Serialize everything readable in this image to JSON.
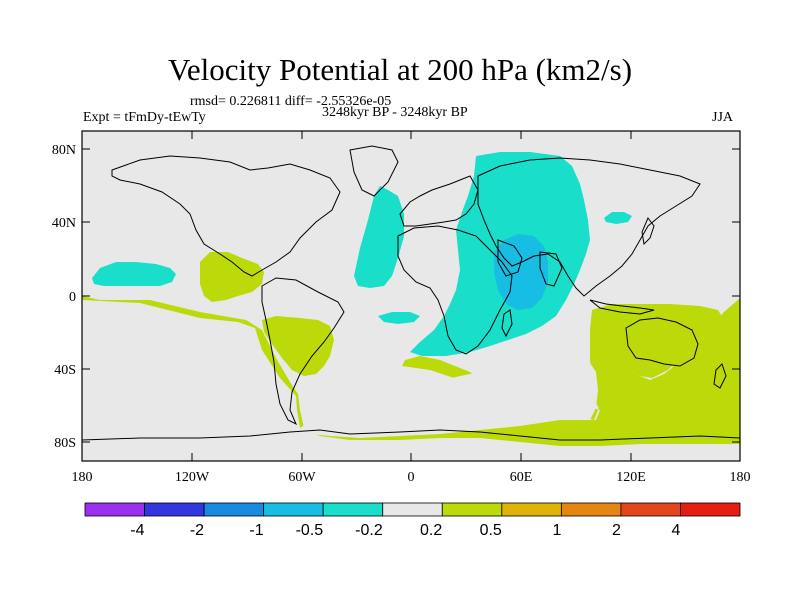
{
  "title": "Velocity Potential at 200 hPa (km2/s)",
  "stats": "rmsd= 0.226811 diff= -2.55326e-05",
  "experiment": "Expt = tFmDy-tEwTy",
  "period": "3248kyr BP - 3248kyr BP",
  "season": "JJA",
  "lat_ticks": [
    "80N",
    "40N",
    "0",
    "40S",
    "80S"
  ],
  "lon_ticks": [
    "180",
    "120W",
    "60W",
    "0",
    "60E",
    "120E",
    "180"
  ],
  "colorbar": {
    "colors": [
      "#9b30ee",
      "#3336df",
      "#1a8ae0",
      "#17bde3",
      "#19deca",
      "#e8e8e8",
      "#bcd90a",
      "#e0b30a",
      "#e58612",
      "#e2461a",
      "#e61b12"
    ],
    "labels": [
      "-4",
      "-2",
      "-1",
      "-0.5",
      "-0.2",
      "0.2",
      "0.5",
      "1",
      "2",
      "4"
    ]
  },
  "map_colors": {
    "background": "#e8e8e8",
    "negative_weak": "#19deca",
    "negative_moderate": "#17bde3",
    "positive_weak": "#bcd90a",
    "coastline": "#000000"
  }
}
